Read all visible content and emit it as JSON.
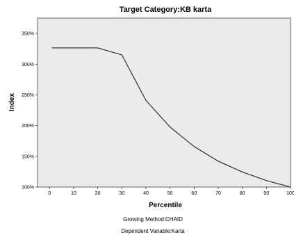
{
  "chart_data": {
    "type": "line",
    "title": "Target Category:KB karta",
    "xlabel": "Percentile",
    "ylabel": "Index",
    "xlim": [
      -5,
      100
    ],
    "ylim": [
      100,
      375
    ],
    "x_ticks": [
      0,
      10,
      20,
      30,
      40,
      50,
      60,
      70,
      80,
      90,
      100
    ],
    "x_tick_labels": [
      "0",
      "10",
      "20",
      "30",
      "40",
      "50",
      "60",
      "70",
      "80",
      "90",
      "100"
    ],
    "y_ticks": [
      100,
      150,
      200,
      250,
      300,
      350
    ],
    "y_tick_labels": [
      "100%",
      "150%",
      "200%",
      "250%",
      "300%",
      "350%"
    ],
    "grid": false,
    "series": [
      {
        "x": [
          1,
          10,
          20,
          30,
          40,
          50,
          60,
          70,
          80,
          90,
          100
        ],
        "y": [
          326.5,
          326.5,
          326.5,
          315,
          241,
          197.5,
          166,
          142,
          124.5,
          110.5,
          100
        ]
      }
    ],
    "annotations": [
      "Growing Method:CHAID",
      "Dependent Variable:Karta"
    ]
  },
  "colors": {
    "plot_background": "#ebebeb",
    "line": "#3a3a3a",
    "axis": "#000000"
  }
}
